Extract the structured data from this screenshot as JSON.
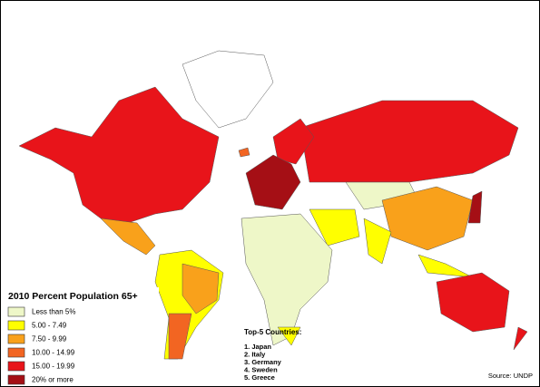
{
  "legend": {
    "title": "2010 Percent Population 65+",
    "items": [
      {
        "label": "Less than 5%",
        "color": "#eef7c8"
      },
      {
        "label": "5.00 - 7.49",
        "color": "#ffff00"
      },
      {
        "label": "7.50 - 9.99",
        "color": "#f9a11b"
      },
      {
        "label": "10.00 - 14.99",
        "color": "#f26522"
      },
      {
        "label": "15.00 - 19.99",
        "color": "#e8141a"
      },
      {
        "label": "20% or more",
        "color": "#a50f15"
      }
    ]
  },
  "top5": {
    "title": "Top-5 Countries:",
    "items": [
      "1. Japan",
      "2. Italy",
      "3. Germany",
      "4. Sweden",
      "5. Greece"
    ]
  },
  "source": "Source: UNDP"
}
